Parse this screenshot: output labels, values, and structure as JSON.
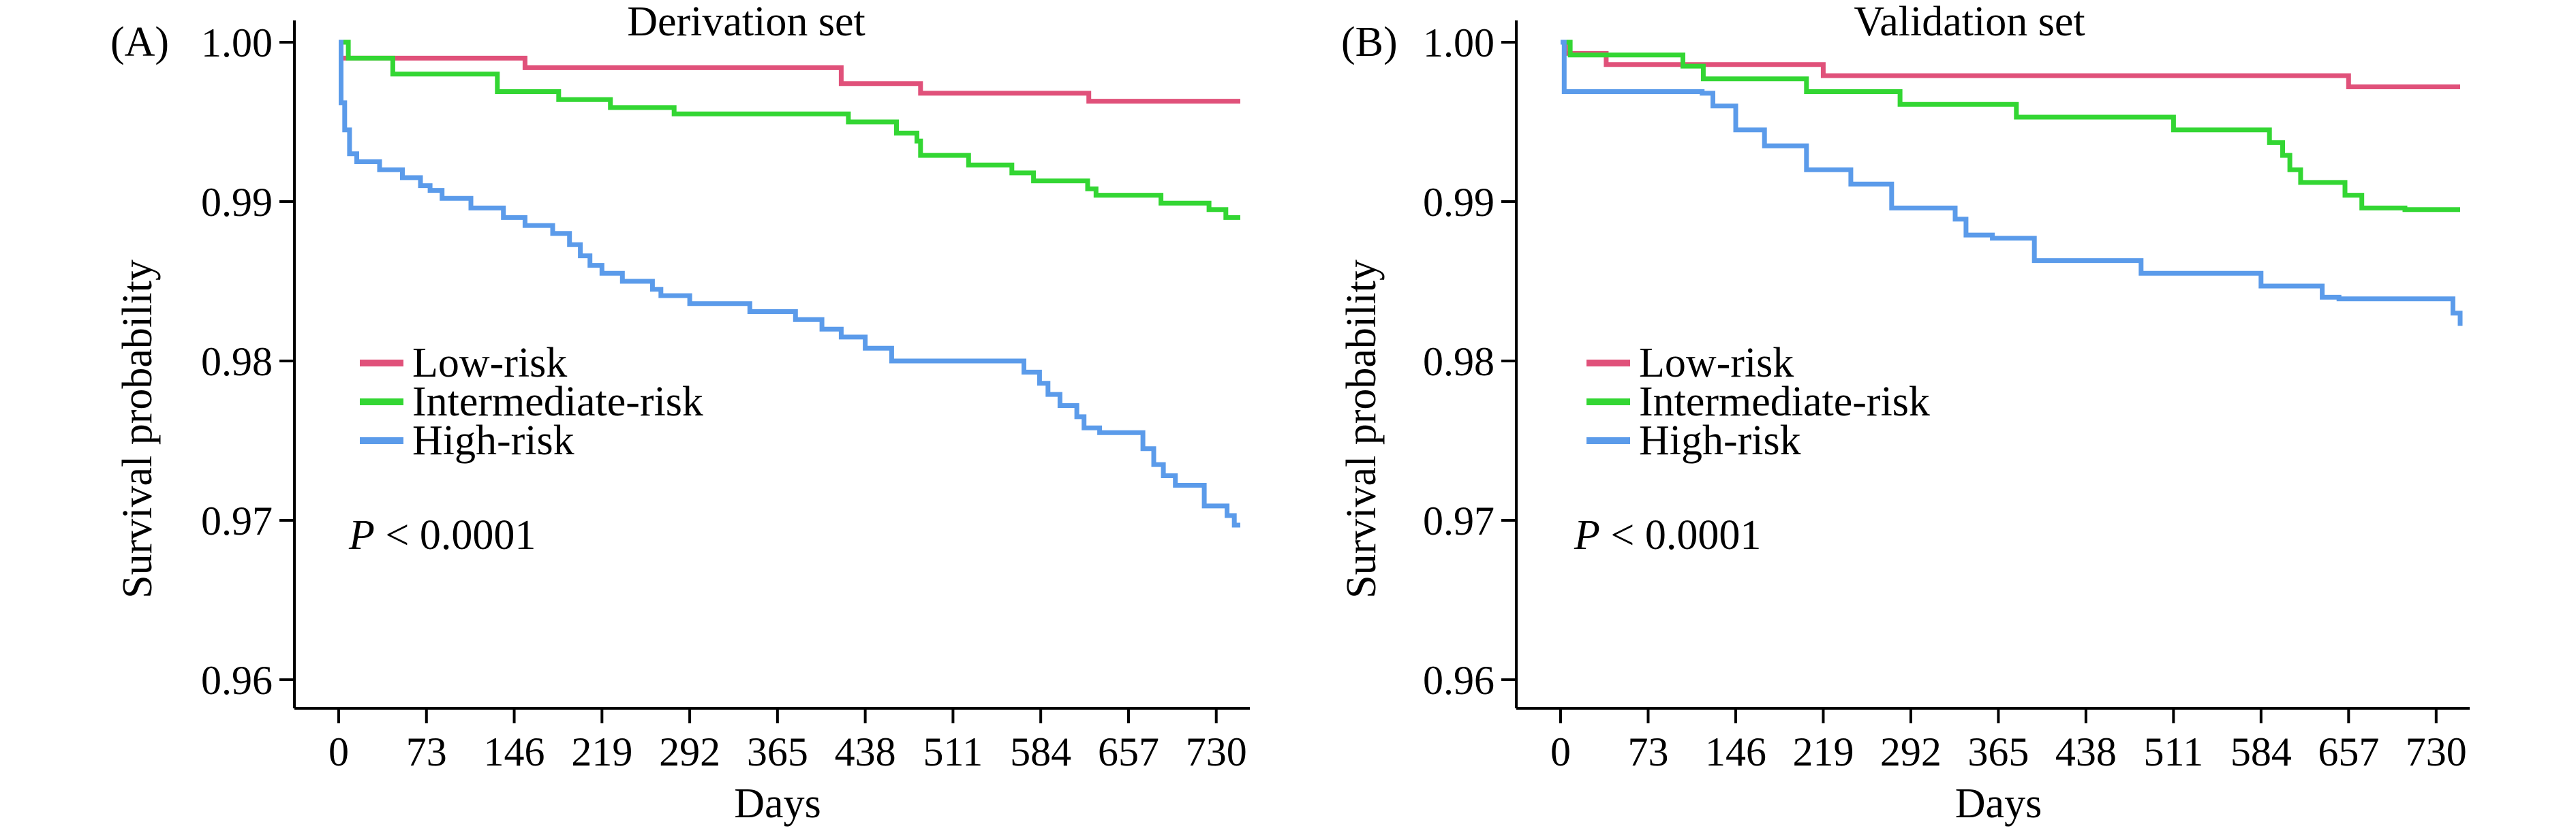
{
  "chart_data": [
    {
      "type": "line",
      "panel_label": "(A)",
      "title": "Derivation set",
      "xlabel": "Days",
      "ylabel": "Survival probability",
      "xlim": [
        0,
        750
      ],
      "ylim": [
        0.96,
        1.0
      ],
      "xticks": [
        0,
        73,
        146,
        219,
        292,
        365,
        438,
        511,
        584,
        657,
        730
      ],
      "yticks": [
        0.96,
        0.97,
        0.98,
        0.99,
        1.0
      ],
      "ytick_labels": [
        "0.96",
        "0.97",
        "0.98",
        "0.99",
        "1.00"
      ],
      "grid": false,
      "legend_position": "center-left",
      "annotation": {
        "italic": "P",
        "text": " < 0.0001"
      },
      "series": [
        {
          "name": "Low-risk",
          "color": "#e0517a",
          "step": true,
          "x": [
            0,
            155,
            418,
            484,
            624,
            750
          ],
          "y": [
            0.999,
            0.9984,
            0.9974,
            0.9968,
            0.9963,
            0.9963
          ]
        },
        {
          "name": "Intermediate-risk",
          "color": "#33d633",
          "step": true,
          "x": [
            0,
            8,
            45,
            132,
            183,
            226,
            279,
            338,
            424,
            464,
            481,
            484,
            524,
            560,
            578,
            623,
            630,
            684,
            724,
            738,
            750
          ],
          "y": [
            1.0,
            0.999,
            0.998,
            0.9969,
            0.9964,
            0.9959,
            0.9955,
            0.9955,
            0.995,
            0.9943,
            0.9938,
            0.9929,
            0.9923,
            0.9918,
            0.9913,
            0.9908,
            0.9904,
            0.9899,
            0.9895,
            0.989,
            0.989
          ]
        },
        {
          "name": "High-risk",
          "color": "#5b9bea",
          "step": true,
          "x": [
            0,
            2,
            5,
            9,
            15,
            34,
            53,
            68,
            76,
            86,
            110,
            137,
            155,
            178,
            192,
            201,
            209,
            219,
            236,
            261,
            268,
            292,
            342,
            380,
            402,
            418,
            438,
            460,
            570,
            583,
            590,
            600,
            614,
            620,
            633,
            669,
            678,
            686,
            696,
            720,
            739,
            745,
            750
          ],
          "y": [
            1.0,
            0.9962,
            0.9945,
            0.993,
            0.9925,
            0.992,
            0.9915,
            0.991,
            0.9907,
            0.9902,
            0.9896,
            0.989,
            0.9885,
            0.988,
            0.9873,
            0.9866,
            0.986,
            0.9855,
            0.985,
            0.9845,
            0.9841,
            0.9836,
            0.9831,
            0.9826,
            0.982,
            0.9815,
            0.9808,
            0.98,
            0.9793,
            0.9786,
            0.9779,
            0.9772,
            0.9765,
            0.9758,
            0.9755,
            0.9745,
            0.9735,
            0.9728,
            0.9722,
            0.9709,
            0.9703,
            0.9697,
            0.9697
          ]
        }
      ]
    },
    {
      "type": "line",
      "panel_label": "(B)",
      "title": "Validation set",
      "xlabel": "Days",
      "ylabel": "Survival probability",
      "xlim": [
        0,
        750
      ],
      "ylim": [
        0.96,
        1.0
      ],
      "xticks": [
        0,
        73,
        146,
        219,
        292,
        365,
        438,
        511,
        584,
        657,
        730
      ],
      "yticks": [
        0.96,
        0.97,
        0.98,
        0.99,
        1.0
      ],
      "ytick_labels": [
        "0.96",
        "0.97",
        "0.98",
        "0.99",
        "1.00"
      ],
      "grid": false,
      "legend_position": "center-left",
      "annotation": {
        "italic": "P",
        "text": " < 0.0001"
      },
      "series": [
        {
          "name": "Low-risk",
          "color": "#e0517a",
          "step": true,
          "x": [
            0,
            4,
            38,
            110,
            219,
            657,
            750
          ],
          "y": [
            1.0,
            0.9993,
            0.9986,
            0.9986,
            0.9979,
            0.9972,
            0.9972
          ]
        },
        {
          "name": "Intermediate-risk",
          "color": "#33d633",
          "step": true,
          "x": [
            0,
            8,
            102,
            119,
            205,
            283,
            380,
            511,
            591,
            602,
            608,
            617,
            654,
            668,
            704,
            750
          ],
          "y": [
            1.0,
            0.9992,
            0.9985,
            0.9977,
            0.9969,
            0.9961,
            0.9953,
            0.9945,
            0.9937,
            0.9929,
            0.992,
            0.9912,
            0.9904,
            0.9896,
            0.9895,
            0.9895
          ]
        },
        {
          "name": "High-risk",
          "color": "#5b9bea",
          "step": true,
          "x": [
            0,
            3,
            118,
            127,
            146,
            170,
            205,
            242,
            276,
            329,
            338,
            360,
            395,
            484,
            584,
            635,
            649,
            744,
            750
          ],
          "y": [
            1.0,
            0.9969,
            0.9968,
            0.996,
            0.9945,
            0.9935,
            0.992,
            0.9911,
            0.9896,
            0.9889,
            0.9879,
            0.9877,
            0.9863,
            0.9855,
            0.9847,
            0.984,
            0.9839,
            0.983,
            0.9822
          ]
        }
      ]
    }
  ]
}
